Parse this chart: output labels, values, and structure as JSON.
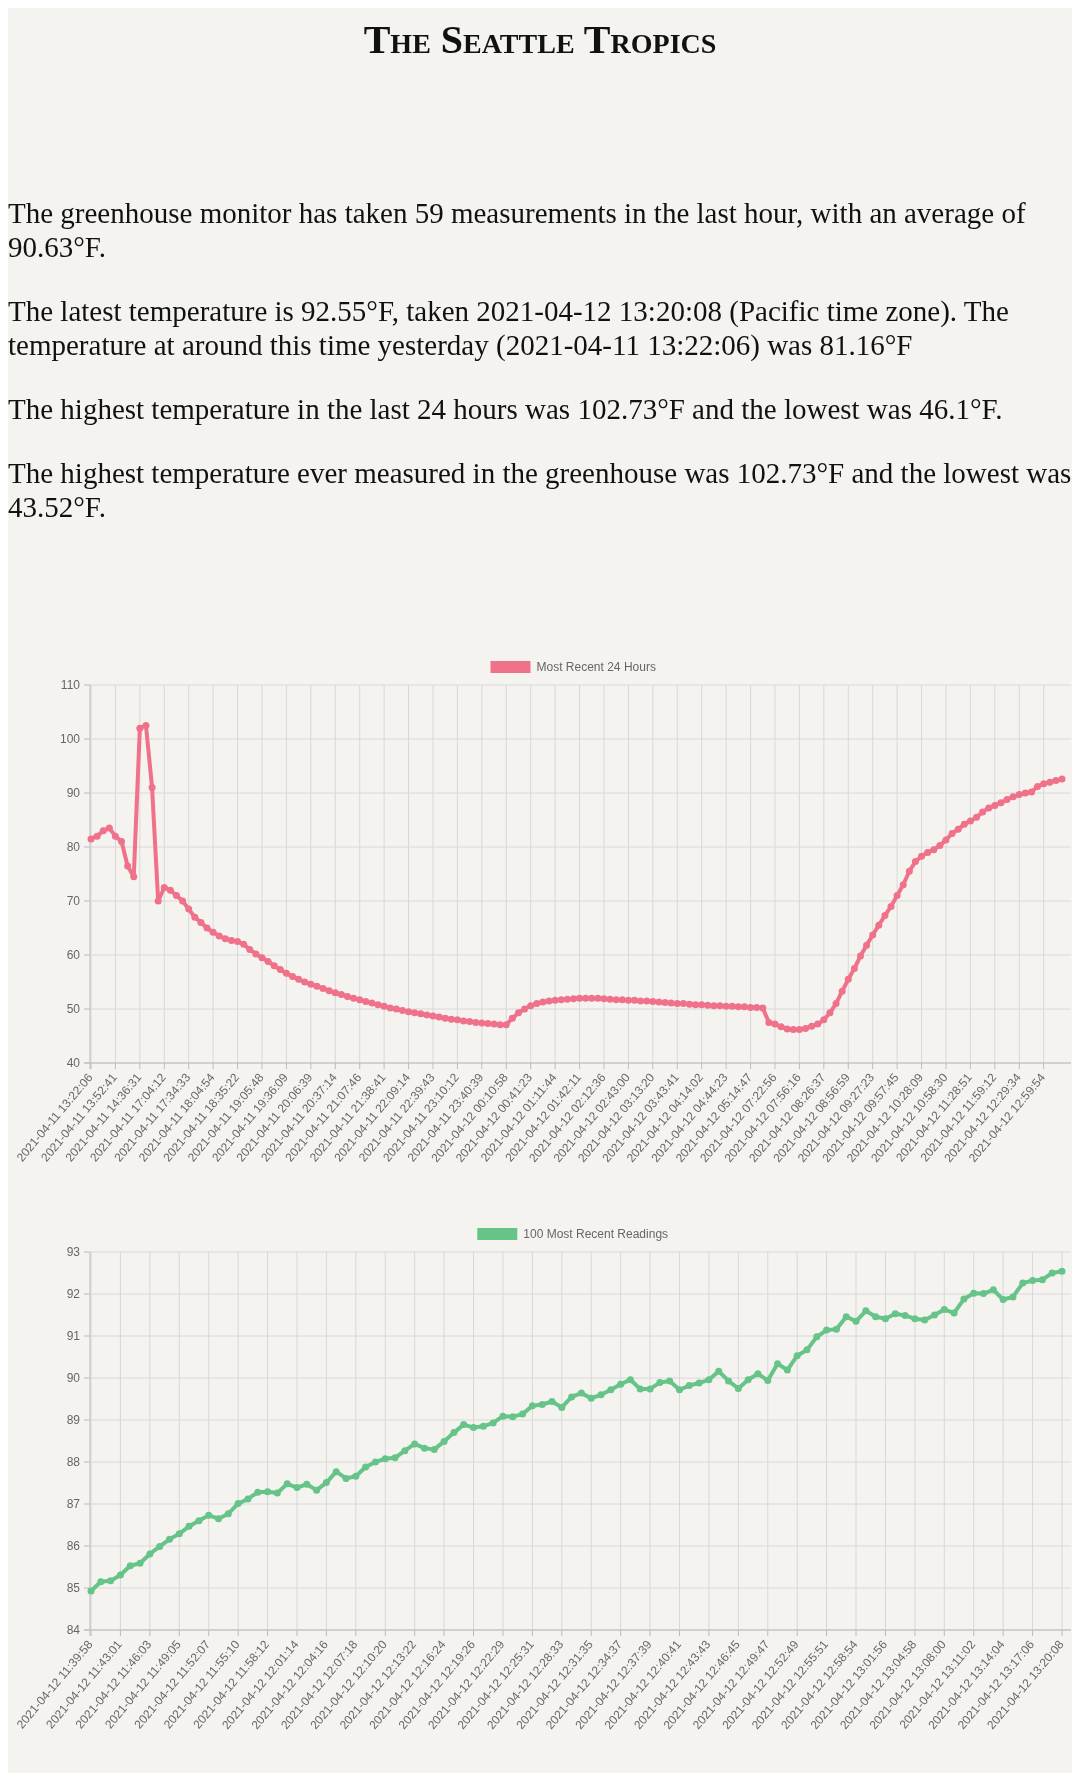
{
  "chart_data": [
    {
      "type": "other",
      "title": "The Seattle Tropics",
      "annotations": [
        "The greenhouse monitor has taken 59 measurements in the last hour, with an average of 90.63°F.",
        "The latest temperature is 92.55°F, taken 2021-04-12 13:20:08 (Pacific time zone). The temperature at around this time yesterday (2021-04-11 13:22:06) was 81.16°F",
        "The highest temperature in the last 24 hours was 102.73°F and the lowest was 46.1°F.",
        "The highest temperature ever measured in the greenhouse was 102.73°F and the lowest was 43.52°F."
      ]
    },
    {
      "type": "line",
      "legend": "top",
      "grid": true,
      "marker": "circle",
      "ylim": [
        40,
        110
      ],
      "yticks": [
        40,
        50,
        60,
        70,
        80,
        90,
        100,
        110
      ],
      "categories": [
        "2021-04-11 13:22:06",
        null,
        null,
        null,
        "2021-04-11 13:52:41",
        null,
        null,
        null,
        "2021-04-11 14:36:31",
        null,
        null,
        null,
        "2021-04-11 17:04:12",
        null,
        null,
        null,
        "2021-04-11 17:34:33",
        null,
        null,
        null,
        "2021-04-11 18:04:54",
        null,
        null,
        null,
        "2021-04-11 18:35:22",
        null,
        null,
        null,
        "2021-04-11 19:05:48",
        null,
        null,
        null,
        "2021-04-11 19:36:09",
        null,
        null,
        null,
        "2021-04-11 20:06:39",
        null,
        null,
        null,
        "2021-04-11 20:37:14",
        null,
        null,
        null,
        "2021-04-11 21:07:46",
        null,
        null,
        null,
        "2021-04-11 21:38:41",
        null,
        null,
        null,
        "2021-04-11 22:09:14",
        null,
        null,
        null,
        "2021-04-11 22:39:43",
        null,
        null,
        null,
        "2021-04-11 23:10:12",
        null,
        null,
        null,
        "2021-04-11 23:40:39",
        null,
        null,
        null,
        "2021-04-12 00:10:58",
        null,
        null,
        null,
        "2021-04-12 00:41:23",
        null,
        null,
        null,
        "2021-04-12 01:11:44",
        null,
        null,
        null,
        "2021-04-12 01:42:11",
        null,
        null,
        null,
        "2021-04-12 02:12:36",
        null,
        null,
        null,
        "2021-04-12 02:43:00",
        null,
        null,
        null,
        "2021-04-12 03:13:20",
        null,
        null,
        null,
        "2021-04-12 03:43:41",
        null,
        null,
        null,
        "2021-04-12 04:14:02",
        null,
        null,
        null,
        "2021-04-12 04:44:23",
        null,
        null,
        null,
        "2021-04-12 05:14:47",
        null,
        null,
        null,
        "2021-04-12 07:22:56",
        null,
        null,
        null,
        "2021-04-12 07:56:16",
        null,
        null,
        null,
        "2021-04-12 08:26:37",
        null,
        null,
        null,
        "2021-04-12 08:56:59",
        null,
        null,
        null,
        "2021-04-12 09:27:23",
        null,
        null,
        null,
        "2021-04-12 09:57:45",
        null,
        null,
        null,
        "2021-04-12 10:28:09",
        null,
        null,
        null,
        "2021-04-12 10:58:30",
        null,
        null,
        null,
        "2021-04-12 11:28:51",
        null,
        null,
        null,
        "2021-04-12 11:59:12",
        null,
        null,
        null,
        "2021-04-12 12:29:34",
        null,
        null,
        null,
        "2021-04-12 12:59:54",
        null,
        null,
        null
      ],
      "series": [
        {
          "name": "Most Recent 24 Hours",
          "color": "#f0718a",
          "values": [
            81.5,
            82,
            83,
            83.5,
            82,
            81,
            76.5,
            74.5,
            102,
            102.5,
            91,
            70,
            72.5,
            72,
            71,
            70,
            68.5,
            67,
            66,
            65,
            64.2,
            63.5,
            63,
            62.7,
            62.5,
            62,
            61,
            60.2,
            59.5,
            58.8,
            58,
            57.3,
            56.6,
            56,
            55.5,
            55,
            54.6,
            54.2,
            53.8,
            53.4,
            53,
            52.7,
            52.3,
            52,
            51.7,
            51.4,
            51.1,
            50.8,
            50.5,
            50.2,
            50,
            49.7,
            49.5,
            49.3,
            49.1,
            48.9,
            48.7,
            48.5,
            48.3,
            48.1,
            48,
            47.8,
            47.7,
            47.5,
            47.4,
            47.3,
            47.2,
            47.1,
            47.1,
            48.3,
            49.3,
            50,
            50.6,
            51,
            51.3,
            51.5,
            51.6,
            51.7,
            51.8,
            51.9,
            52,
            52,
            52,
            52,
            51.9,
            51.8,
            51.7,
            51.7,
            51.6,
            51.6,
            51.5,
            51.5,
            51.4,
            51.3,
            51.2,
            51.1,
            51,
            51,
            50.9,
            50.8,
            50.8,
            50.7,
            50.6,
            50.6,
            50.5,
            50.5,
            50.4,
            50.4,
            50.3,
            50.3,
            50.2,
            47.5,
            47.2,
            46.7,
            46.3,
            46.2,
            46.2,
            46.4,
            46.8,
            47.2,
            48,
            49.3,
            51,
            53.3,
            55.5,
            57.5,
            59.8,
            61.8,
            63.7,
            65.5,
            67.3,
            69,
            71,
            73,
            75.5,
            77.3,
            78.3,
            79,
            79.5,
            80.3,
            81.3,
            82.5,
            83.3,
            84.2,
            84.8,
            85.5,
            86.5,
            87.2,
            87.7,
            88.2,
            88.8,
            89.3,
            89.7,
            90,
            90.2,
            91.2,
            91.7,
            92,
            92.3,
            92.6
          ]
        }
      ]
    },
    {
      "type": "line",
      "legend": "top",
      "grid": true,
      "marker": "circle",
      "ylim": [
        84,
        93
      ],
      "yticks": [
        84,
        85,
        86,
        87,
        88,
        89,
        90,
        91,
        92,
        93
      ],
      "categories": [
        "2021-04-12 11:39:58",
        null,
        null,
        "2021-04-12 11:43:01",
        null,
        null,
        "2021-04-12 11:46:03",
        null,
        null,
        "2021-04-12 11:49:05",
        null,
        null,
        "2021-04-12 11:52:07",
        null,
        null,
        "2021-04-12 11:55:10",
        null,
        null,
        "2021-04-12 11:58:12",
        null,
        null,
        "2021-04-12 12:01:14",
        null,
        null,
        "2021-04-12 12:04:16",
        null,
        null,
        "2021-04-12 12:07:18",
        null,
        null,
        "2021-04-12 12:10:20",
        null,
        null,
        "2021-04-12 12:13:22",
        null,
        null,
        "2021-04-12 12:16:24",
        null,
        null,
        "2021-04-12 12:19:26",
        null,
        null,
        "2021-04-12 12:22:29",
        null,
        null,
        "2021-04-12 12:25:31",
        null,
        null,
        "2021-04-12 12:28:33",
        null,
        null,
        "2021-04-12 12:31:35",
        null,
        null,
        "2021-04-12 12:34:37",
        null,
        null,
        "2021-04-12 12:37:39",
        null,
        null,
        "2021-04-12 12:40:41",
        null,
        null,
        "2021-04-12 12:43:43",
        null,
        null,
        "2021-04-12 12:46:45",
        null,
        null,
        "2021-04-12 12:49:47",
        null,
        null,
        "2021-04-12 12:52:49",
        null,
        null,
        "2021-04-12 12:55:51",
        null,
        null,
        "2021-04-12 12:58:54",
        null,
        null,
        "2021-04-12 13:01:56",
        null,
        null,
        "2021-04-12 13:04:58",
        null,
        null,
        "2021-04-12 13:08:00",
        null,
        null,
        "2021-04-12 13:11:02",
        null,
        null,
        "2021-04-12 13:14:04",
        null,
        null,
        "2021-04-12 13:17:06",
        null,
        null,
        "2021-04-12 13:20:08"
      ],
      "series": [
        {
          "name": "100 Most Recent Readings",
          "color": "#66c488",
          "values": [
            84.93,
            85.15,
            85.17,
            85.31,
            85.53,
            85.59,
            85.81,
            85.99,
            86.16,
            86.29,
            86.47,
            86.6,
            86.73,
            86.65,
            86.77,
            87.01,
            87.12,
            87.28,
            87.29,
            87.26,
            87.48,
            87.39,
            87.47,
            87.33,
            87.51,
            87.77,
            87.61,
            87.66,
            87.88,
            88,
            88.08,
            88.1,
            88.27,
            88.43,
            88.33,
            88.3,
            88.49,
            88.7,
            88.89,
            88.82,
            88.85,
            88.93,
            89.09,
            89.08,
            89.14,
            89.34,
            89.37,
            89.44,
            89.3,
            89.55,
            89.64,
            89.52,
            89.6,
            89.72,
            89.85,
            89.96,
            89.74,
            89.74,
            89.89,
            89.93,
            89.72,
            89.82,
            89.88,
            89.96,
            90.16,
            89.93,
            89.75,
            89.96,
            90.1,
            89.94,
            90.34,
            90.19,
            90.53,
            90.67,
            90.98,
            91.14,
            91.16,
            91.46,
            91.35,
            91.6,
            91.46,
            91.41,
            91.53,
            91.49,
            91.41,
            91.38,
            91.5,
            91.63,
            91.55,
            91.88,
            92.02,
            92.01,
            92.1,
            91.87,
            91.93,
            92.26,
            92.32,
            92.34,
            92.5,
            92.54
          ]
        }
      ]
    }
  ]
}
